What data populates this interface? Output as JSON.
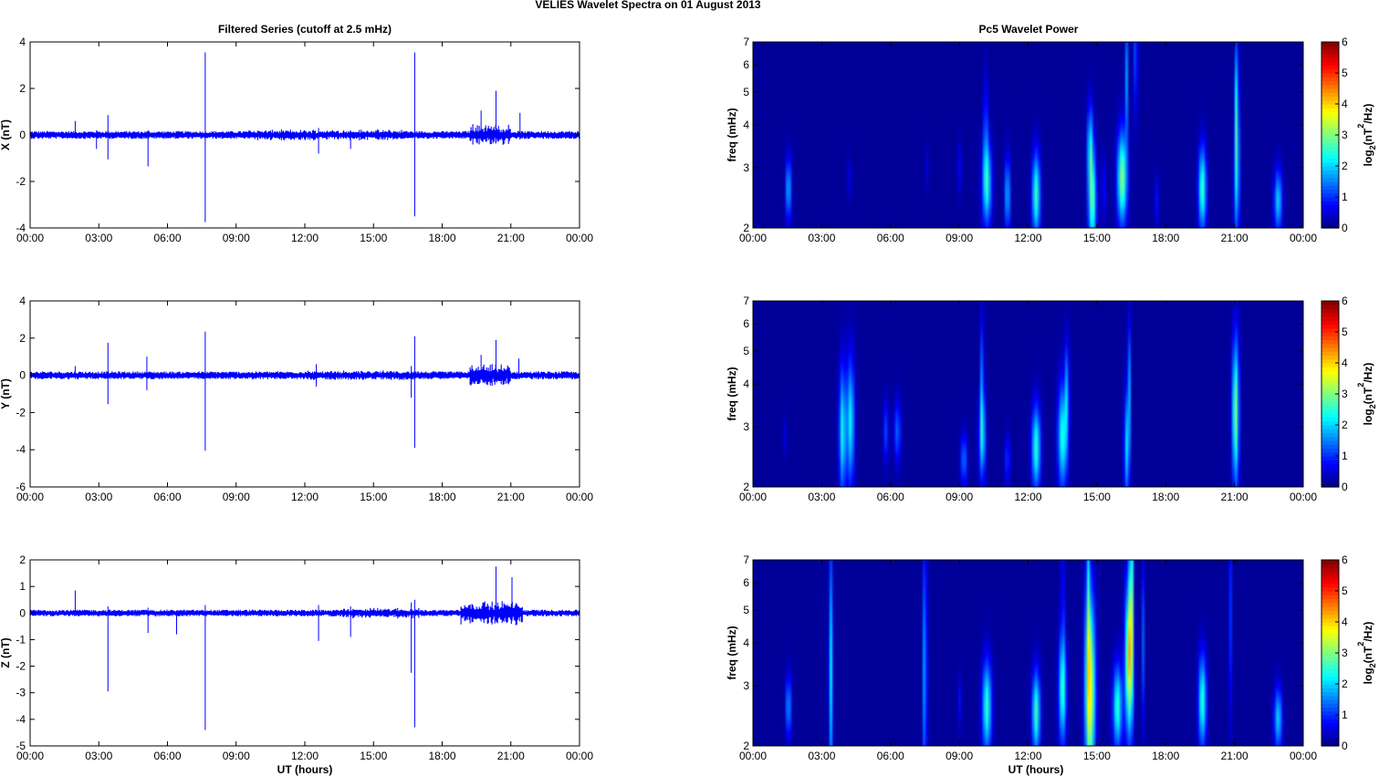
{
  "figure": {
    "title": "VELIES Wavelet Spectra on 01 August    2013",
    "left_title": "Filtered Series (cutoff at 2.5 mHz)",
    "right_title": "Pc5 Wavelet Power",
    "xlabel": "UT (hours)"
  },
  "colors": {
    "trace": "#0000ff",
    "spectrum_bg": "#00008f",
    "axis": "#000000"
  },
  "chart_data": [
    {
      "type": "line",
      "component": "X",
      "ylabel": "X (nT)",
      "xlim": [
        0,
        24
      ],
      "ylim": [
        -4,
        4
      ],
      "x_ticklabels": [
        "00:00",
        "03:00",
        "06:00",
        "09:00",
        "12:00",
        "15:00",
        "18:00",
        "21:00",
        "00:00"
      ],
      "y_ticks": [
        -4,
        -2,
        0,
        2,
        4
      ],
      "noise_amplitude": 0.12,
      "activity": [
        {
          "from": 19.2,
          "to": 21.0,
          "amp": 0.35
        },
        {
          "from": 9.5,
          "to": 16.5,
          "amp": 0.18
        }
      ],
      "spikes": [
        {
          "t": 1.97,
          "min": -0.1,
          "max": 0.6
        },
        {
          "t": 2.9,
          "min": -0.6,
          "max": 0.2
        },
        {
          "t": 3.4,
          "min": -1.05,
          "max": 0.85
        },
        {
          "t": 5.15,
          "min": -1.35,
          "max": 0.2
        },
        {
          "t": 7.65,
          "min": -3.75,
          "max": 3.55
        },
        {
          "t": 12.6,
          "min": -0.8,
          "max": 0.3
        },
        {
          "t": 14.0,
          "min": -0.6,
          "max": 0.2
        },
        {
          "t": 16.8,
          "min": -3.5,
          "max": 3.55
        },
        {
          "t": 19.7,
          "min": -0.2,
          "max": 1.05
        },
        {
          "t": 20.35,
          "min": -0.3,
          "max": 1.9
        },
        {
          "t": 21.4,
          "min": -0.2,
          "max": 0.95
        }
      ]
    },
    {
      "type": "line",
      "component": "Y",
      "ylabel": "Y (nT)",
      "xlim": [
        0,
        24
      ],
      "ylim": [
        -6,
        4
      ],
      "x_ticklabels": [
        "00:00",
        "03:00",
        "06:00",
        "09:00",
        "12:00",
        "15:00",
        "18:00",
        "21:00",
        "00:00"
      ],
      "y_ticks": [
        -6,
        -4,
        -2,
        0,
        2,
        4
      ],
      "noise_amplitude": 0.15,
      "activity": [
        {
          "from": 19.2,
          "to": 21.0,
          "amp": 0.45
        },
        {
          "from": 12.0,
          "to": 17.0,
          "amp": 0.2
        }
      ],
      "spikes": [
        {
          "t": 1.97,
          "min": -0.1,
          "max": 0.5
        },
        {
          "t": 3.4,
          "min": -1.55,
          "max": 1.75
        },
        {
          "t": 5.1,
          "min": -0.8,
          "max": 1.0
        },
        {
          "t": 7.65,
          "min": -4.05,
          "max": 2.35
        },
        {
          "t": 12.5,
          "min": -0.6,
          "max": 0.6
        },
        {
          "t": 16.65,
          "min": -1.2,
          "max": 0.5
        },
        {
          "t": 16.8,
          "min": -3.9,
          "max": 2.1
        },
        {
          "t": 19.7,
          "min": -0.2,
          "max": 1.1
        },
        {
          "t": 20.35,
          "min": -0.3,
          "max": 1.9
        },
        {
          "t": 21.35,
          "min": -0.2,
          "max": 0.9
        }
      ]
    },
    {
      "type": "line",
      "component": "Z",
      "ylabel": "Z (nT)",
      "xlim": [
        0,
        24
      ],
      "ylim": [
        -5,
        2
      ],
      "x_ticklabels": [
        "00:00",
        "03:00",
        "06:00",
        "09:00",
        "12:00",
        "15:00",
        "18:00",
        "21:00",
        "00:00"
      ],
      "y_ticks": [
        -5,
        -4,
        -3,
        -2,
        -1,
        0,
        1,
        2
      ],
      "noise_amplitude": 0.09,
      "activity": [
        {
          "from": 18.8,
          "to": 21.5,
          "amp": 0.35
        },
        {
          "from": 13.5,
          "to": 17.0,
          "amp": 0.15
        }
      ],
      "spikes": [
        {
          "t": 1.97,
          "min": -0.05,
          "max": 0.85
        },
        {
          "t": 3.4,
          "min": -2.95,
          "max": 0.25
        },
        {
          "t": 5.15,
          "min": -0.75,
          "max": 0.2
        },
        {
          "t": 6.4,
          "min": -0.8,
          "max": 0.1
        },
        {
          "t": 7.65,
          "min": -4.4,
          "max": 0.3
        },
        {
          "t": 12.6,
          "min": -1.05,
          "max": 0.3
        },
        {
          "t": 14.0,
          "min": -0.9,
          "max": 0.25
        },
        {
          "t": 16.65,
          "min": -2.25,
          "max": 0.4
        },
        {
          "t": 16.8,
          "min": -4.3,
          "max": 0.5
        },
        {
          "t": 20.35,
          "min": -0.3,
          "max": 1.75
        },
        {
          "t": 21.05,
          "min": -0.3,
          "max": 1.35
        }
      ]
    },
    {
      "type": "heatmap",
      "component": "X",
      "ylabel": "freq (mHz)",
      "xlim": [
        0,
        24
      ],
      "ylim": [
        2,
        7
      ],
      "yscale": "log",
      "y_ticks": [
        2,
        3,
        4,
        5,
        6,
        7
      ],
      "x_ticklabels": [
        "00:00",
        "03:00",
        "06:00",
        "09:00",
        "12:00",
        "15:00",
        "18:00",
        "21:00",
        "00:00"
      ],
      "colorbar": {
        "label": "log2(nT²/Hz)",
        "range": [
          0,
          6
        ],
        "ticks": [
          0,
          1,
          2,
          3,
          4,
          5,
          6
        ]
      },
      "blobs": [
        {
          "t": 1.55,
          "f": 2.6,
          "tw": 0.08,
          "fw": 0.15,
          "v": 1.8
        },
        {
          "t": 4.2,
          "f": 2.8,
          "tw": 0.06,
          "fw": 0.1,
          "v": 0.5
        },
        {
          "t": 7.6,
          "f": 3.0,
          "tw": 0.05,
          "fw": 0.1,
          "v": 0.4
        },
        {
          "t": 9.0,
          "f": 3.0,
          "tw": 0.06,
          "fw": 0.12,
          "v": 0.6
        },
        {
          "t": 10.2,
          "f": 2.7,
          "tw": 0.14,
          "fw": 0.2,
          "v": 2.3
        },
        {
          "t": 10.15,
          "f": 4.0,
          "tw": 0.05,
          "fw": 0.25,
          "v": 1.3
        },
        {
          "t": 11.1,
          "f": 2.5,
          "tw": 0.08,
          "fw": 0.18,
          "v": 1.8
        },
        {
          "t": 12.35,
          "f": 2.5,
          "tw": 0.12,
          "fw": 0.2,
          "v": 2.5
        },
        {
          "t": 14.8,
          "f": 2.4,
          "tw": 0.12,
          "fw": 0.25,
          "v": 2.6
        },
        {
          "t": 14.7,
          "f": 3.5,
          "tw": 0.08,
          "fw": 0.2,
          "v": 1.8
        },
        {
          "t": 16.1,
          "f": 2.8,
          "tw": 0.15,
          "fw": 0.22,
          "v": 2.9
        },
        {
          "t": 16.3,
          "f": 5.5,
          "tw": 0.05,
          "fw": 0.3,
          "v": 1.5
        },
        {
          "t": 16.7,
          "f": 6.5,
          "tw": 0.05,
          "fw": 0.3,
          "v": 1.4
        },
        {
          "t": 15.3,
          "f": 2.6,
          "tw": 0.06,
          "fw": 0.15,
          "v": 0.8
        },
        {
          "t": 17.6,
          "f": 2.4,
          "tw": 0.06,
          "fw": 0.12,
          "v": 0.7
        },
        {
          "t": 19.6,
          "f": 2.6,
          "tw": 0.12,
          "fw": 0.2,
          "v": 2.5
        },
        {
          "t": 21.1,
          "f": 3.0,
          "tw": 0.08,
          "fw": 0.35,
          "v": 2.1
        },
        {
          "t": 21.1,
          "f": 5.0,
          "tw": 0.05,
          "fw": 0.3,
          "v": 1.6
        },
        {
          "t": 22.9,
          "f": 2.4,
          "tw": 0.12,
          "fw": 0.15,
          "v": 1.9
        }
      ]
    },
    {
      "type": "heatmap",
      "component": "Y",
      "ylabel": "freq (mHz)",
      "xlim": [
        0,
        24
      ],
      "ylim": [
        2,
        7
      ],
      "yscale": "log",
      "y_ticks": [
        2,
        3,
        4,
        5,
        6,
        7
      ],
      "x_ticklabels": [
        "00:00",
        "03:00",
        "06:00",
        "09:00",
        "12:00",
        "15:00",
        "18:00",
        "21:00",
        "00:00"
      ],
      "colorbar": {
        "label": "log2(nT²/Hz)",
        "range": [
          0,
          6
        ],
        "ticks": [
          0,
          1,
          2,
          3,
          4,
          5,
          6
        ]
      },
      "blobs": [
        {
          "t": 1.4,
          "f": 2.8,
          "tw": 0.05,
          "fw": 0.1,
          "v": 0.5
        },
        {
          "t": 3.9,
          "f": 2.9,
          "tw": 0.1,
          "fw": 0.3,
          "v": 2.2
        },
        {
          "t": 4.25,
          "f": 3.1,
          "tw": 0.12,
          "fw": 0.3,
          "v": 2.1
        },
        {
          "t": 5.8,
          "f": 2.9,
          "tw": 0.08,
          "fw": 0.15,
          "v": 1.0
        },
        {
          "t": 6.3,
          "f": 2.9,
          "tw": 0.1,
          "fw": 0.15,
          "v": 1.2
        },
        {
          "t": 9.2,
          "f": 2.4,
          "tw": 0.1,
          "fw": 0.12,
          "v": 1.3
        },
        {
          "t": 10.0,
          "f": 2.8,
          "tw": 0.1,
          "fw": 0.2,
          "v": 1.9
        },
        {
          "t": 10.0,
          "f": 4.2,
          "tw": 0.05,
          "fw": 0.3,
          "v": 1.4
        },
        {
          "t": 11.1,
          "f": 2.4,
          "tw": 0.06,
          "fw": 0.12,
          "v": 1.2
        },
        {
          "t": 12.35,
          "f": 2.6,
          "tw": 0.13,
          "fw": 0.2,
          "v": 2.4
        },
        {
          "t": 13.5,
          "f": 2.8,
          "tw": 0.14,
          "fw": 0.25,
          "v": 2.3
        },
        {
          "t": 13.7,
          "f": 3.8,
          "tw": 0.06,
          "fw": 0.25,
          "v": 1.5
        },
        {
          "t": 16.3,
          "f": 2.6,
          "tw": 0.08,
          "fw": 0.25,
          "v": 1.9
        },
        {
          "t": 16.4,
          "f": 4.0,
          "tw": 0.05,
          "fw": 0.3,
          "v": 1.5
        },
        {
          "t": 21.05,
          "f": 3.3,
          "tw": 0.1,
          "fw": 0.35,
          "v": 2.9
        }
      ]
    },
    {
      "type": "heatmap",
      "component": "Z",
      "ylabel": "freq (mHz)",
      "xlim": [
        0,
        24
      ],
      "ylim": [
        2,
        7
      ],
      "yscale": "log",
      "y_ticks": [
        2,
        3,
        4,
        5,
        6,
        7
      ],
      "x_ticklabels": [
        "00:00",
        "03:00",
        "06:00",
        "09:00",
        "12:00",
        "15:00",
        "18:00",
        "21:00",
        "00:00"
      ],
      "colorbar": {
        "label": "log2(nT²/Hz)",
        "range": [
          0,
          6
        ],
        "ticks": [
          0,
          1,
          2,
          3,
          4,
          5,
          6
        ]
      },
      "blobs": [
        {
          "t": 1.55,
          "f": 2.6,
          "tw": 0.08,
          "fw": 0.15,
          "v": 1.6
        },
        {
          "t": 3.4,
          "f": 3.3,
          "tw": 0.06,
          "fw": 0.6,
          "v": 2.0
        },
        {
          "t": 7.5,
          "f": 3.3,
          "tw": 0.06,
          "fw": 0.6,
          "v": 1.8
        },
        {
          "t": 9.0,
          "f": 2.7,
          "tw": 0.05,
          "fw": 0.12,
          "v": 0.7
        },
        {
          "t": 10.2,
          "f": 2.6,
          "tw": 0.14,
          "fw": 0.22,
          "v": 2.4
        },
        {
          "t": 12.35,
          "f": 2.5,
          "tw": 0.12,
          "fw": 0.2,
          "v": 2.5
        },
        {
          "t": 13.5,
          "f": 2.9,
          "tw": 0.12,
          "fw": 0.25,
          "v": 2.2
        },
        {
          "t": 13.5,
          "f": 5.0,
          "tw": 0.04,
          "fw": 0.5,
          "v": 1.3
        },
        {
          "t": 14.7,
          "f": 2.9,
          "tw": 0.15,
          "fw": 0.45,
          "v": 3.7
        },
        {
          "t": 14.6,
          "f": 5.8,
          "tw": 0.05,
          "fw": 0.5,
          "v": 1.6
        },
        {
          "t": 15.9,
          "f": 2.6,
          "tw": 0.14,
          "fw": 0.2,
          "v": 2.4
        },
        {
          "t": 16.4,
          "f": 3.6,
          "tw": 0.12,
          "fw": 0.35,
          "v": 3.6
        },
        {
          "t": 16.5,
          "f": 6.0,
          "tw": 0.06,
          "fw": 0.5,
          "v": 2.3
        },
        {
          "t": 17.0,
          "f": 4.0,
          "tw": 0.04,
          "fw": 0.4,
          "v": 1.2
        },
        {
          "t": 19.6,
          "f": 2.7,
          "tw": 0.12,
          "fw": 0.22,
          "v": 2.4
        },
        {
          "t": 20.8,
          "f": 4.8,
          "tw": 0.04,
          "fw": 0.5,
          "v": 1.3
        },
        {
          "t": 22.9,
          "f": 2.4,
          "tw": 0.12,
          "fw": 0.15,
          "v": 1.9
        }
      ]
    }
  ]
}
